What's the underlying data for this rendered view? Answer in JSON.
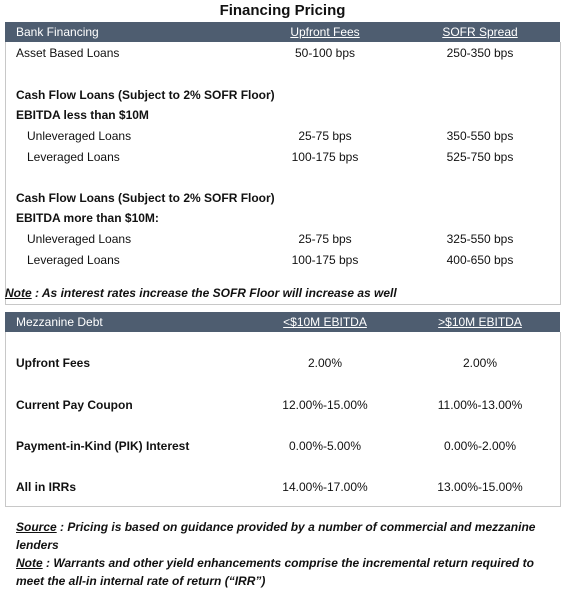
{
  "title": "Financing Pricing",
  "bank_table": {
    "header": [
      "Bank Financing",
      "Upfront Fees",
      "SOFR Spread"
    ],
    "rows": [
      [
        "Asset Based Loans",
        "50-100 bps",
        "250-350 bps"
      ],
      [
        "Cash Flow Loans (Subject to 2% SOFR Floor)"
      ],
      [
        "EBITDA less than $10M"
      ],
      [
        "Unleveraged Loans",
        "25-75 bps",
        "350-550 bps"
      ],
      [
        "Leveraged Loans",
        "100-175 bps",
        "525-750 bps"
      ],
      [
        "Cash Flow Loans (Subject to 2% SOFR Floor)"
      ],
      [
        "EBITDA more than $10M:"
      ],
      [
        "Unleveraged Loans",
        "25-75 bps",
        "325-550 bps"
      ],
      [
        "Leveraged Loans",
        "100-175 bps",
        "400-650 bps"
      ]
    ]
  },
  "note": {
    "label": "Note",
    "text": " : As interest rates increase the SOFR Floor will increase as well"
  },
  "mezz_table": {
    "header": [
      "Mezzanine Debt",
      "<$10M EBITDA",
      ">$10M EBITDA"
    ],
    "rows": [
      [
        "Upfront Fees",
        "2.00%",
        "2.00%"
      ],
      [
        "Current Pay Coupon",
        "12.00%-15.00%",
        "11.00%-13.00%"
      ],
      [
        "Payment-in-Kind (PIK) Interest",
        "0.00%-5.00%",
        "0.00%-2.00%"
      ],
      [
        "All in IRRs",
        "14.00%-17.00%",
        "13.00%-15.00%"
      ]
    ]
  },
  "footnotes": [
    {
      "label": "Source",
      "text": " : Pricing is based on guidance provided by a number of commercial and mezzanine lenders"
    },
    {
      "label": "Note",
      "text": " : Warrants and other yield enhancements comprise the incremental return required to meet the all-in internal rate of return (“IRR”)"
    }
  ]
}
